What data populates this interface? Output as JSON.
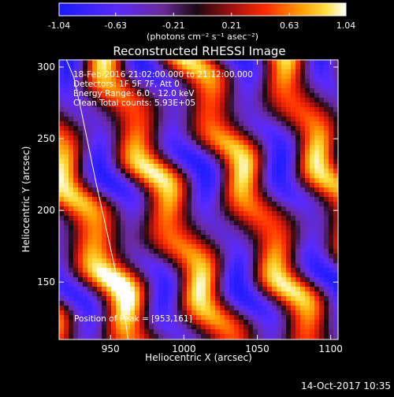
{
  "chart_data": {
    "type": "heatmap",
    "title": "Reconstructed RHESSI Image",
    "xlabel": "Heliocentric X (arcsec)",
    "ylabel": "Heliocentric Y (arcsec)",
    "xlim": [
      915,
      1105
    ],
    "ylim": [
      110,
      305
    ],
    "x_ticks": [
      950,
      1000,
      1050,
      1100
    ],
    "y_ticks": [
      150,
      200,
      250,
      300
    ],
    "colorbar": {
      "range": [
        -1.04,
        1.04
      ],
      "ticks": [
        "-1.04",
        "-0.63",
        "-0.21",
        "0.21",
        "0.63",
        "1.04"
      ],
      "unit_label": "(photons cm⁻² s⁻¹ asec⁻²)",
      "colormap": "blue-purple-black-red-yellow-white"
    },
    "info_lines": [
      "18-Feb-2016 21:02:00.000 to 21:12:00.000",
      "Detectors: 1F 5F 7F, Att 0",
      "Energy Range: 6.0 - 12.0 keV",
      "Clean     Total counts: 5.93E+05"
    ],
    "peak_text": "Position of Peak = [953,161]",
    "peak": {
      "x": 953,
      "y": 161
    },
    "limb_curve": [
      [
        920,
        305
      ],
      [
        925,
        293
      ],
      [
        930,
        270
      ],
      [
        935,
        245
      ],
      [
        940,
        220
      ],
      [
        945,
        197
      ],
      [
        950,
        174
      ],
      [
        955,
        150
      ],
      [
        960,
        125
      ],
      [
        962,
        110
      ]
    ],
    "pattern": {
      "description": "diagonal stripe fringe pattern",
      "period_arcsec": 55,
      "direction": [
        1,
        0.42
      ],
      "wobble_amp": 5
    }
  },
  "footer": {
    "timestamp": "14-Oct-2017 10:35"
  },
  "colors": {
    "background": "#000000",
    "text": "#ffffff",
    "limb": "#ffffff"
  }
}
